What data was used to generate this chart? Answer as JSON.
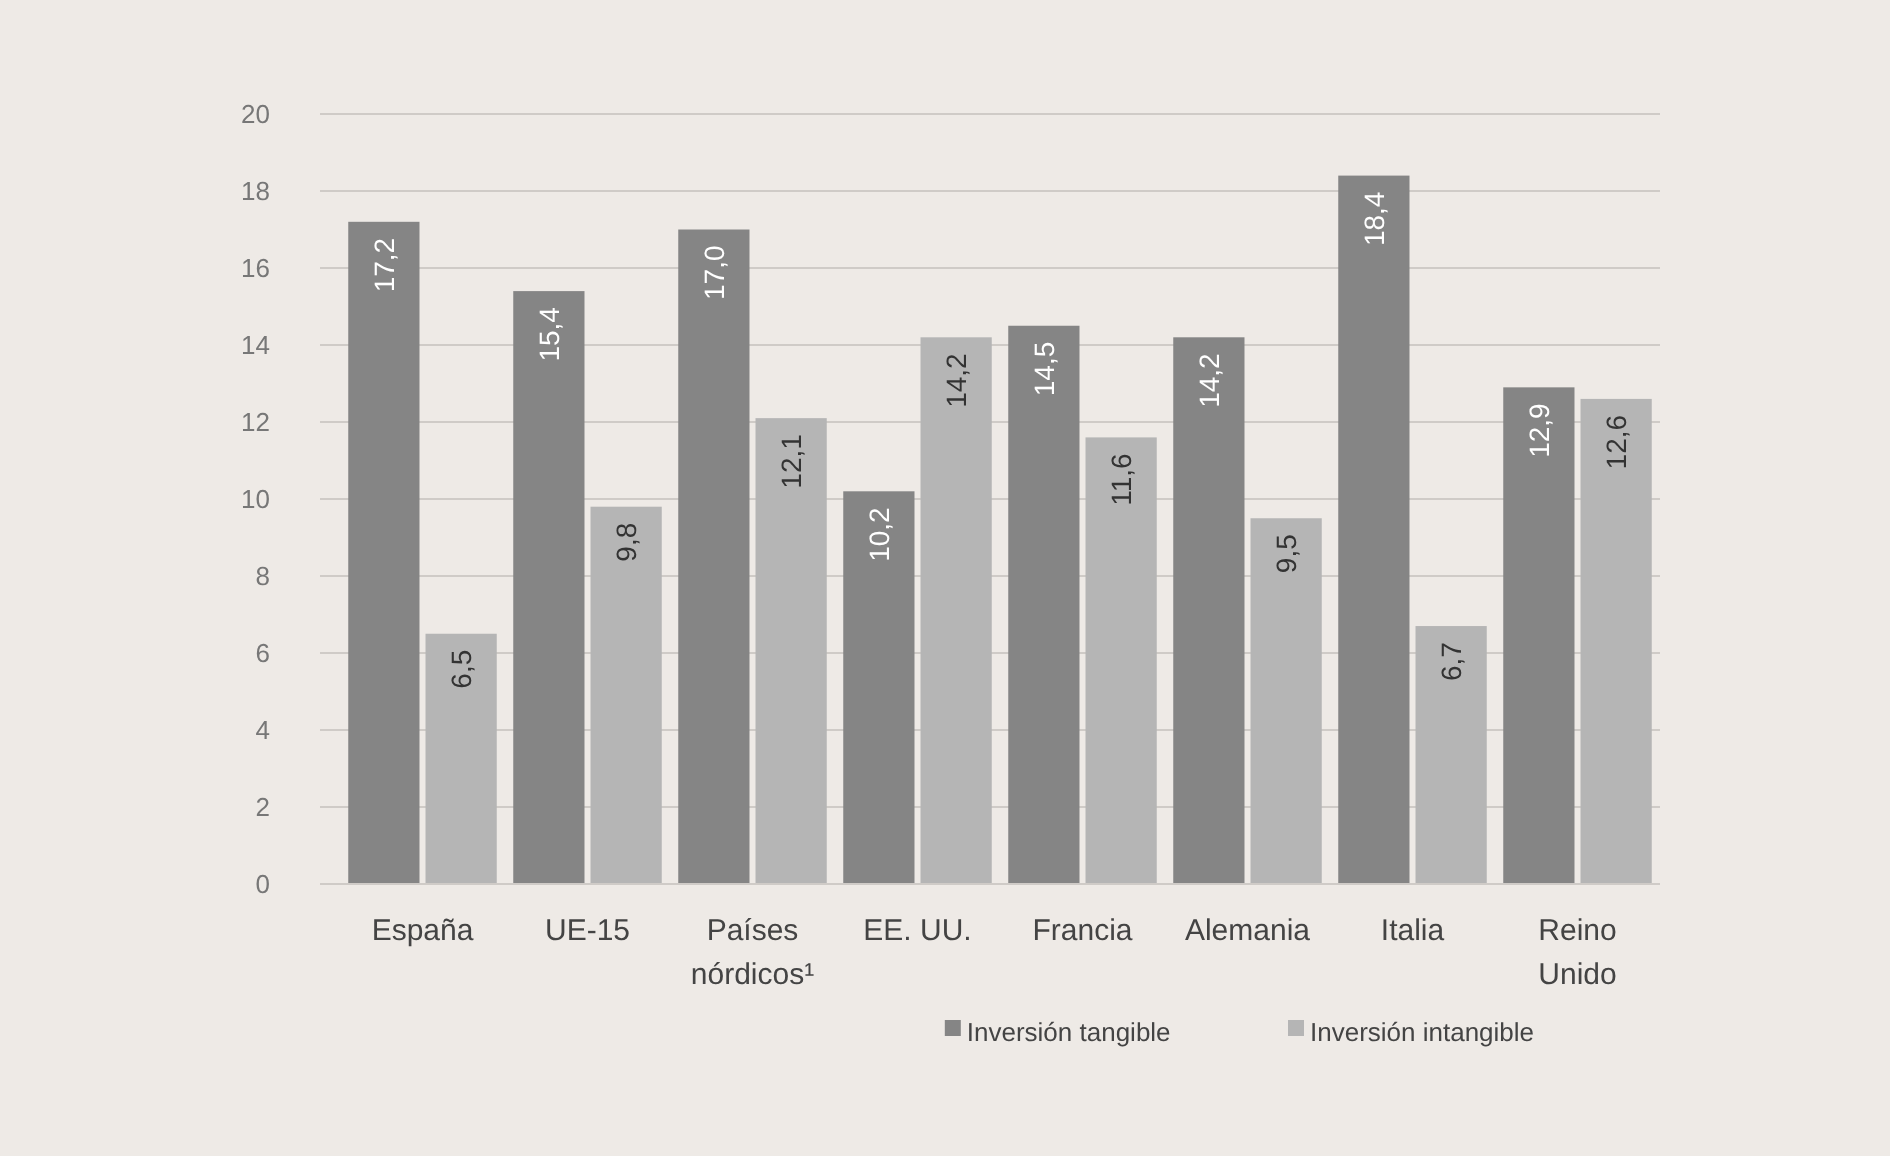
{
  "chart_data": {
    "type": "bar",
    "categories": [
      "España",
      "UE-15",
      "Países nórdicos¹",
      "EE. UU.",
      "Francia",
      "Alemania",
      "Italia",
      "Reino Unido"
    ],
    "series": [
      {
        "name": "Inversión tangible",
        "color": "#858585",
        "values": [
          17.2,
          15.4,
          17.0,
          10.2,
          14.5,
          14.2,
          18.4,
          12.9
        ],
        "value_labels": [
          "17,2",
          "15,4",
          "17,0",
          "10,2",
          "14,5",
          "14,2",
          "18,4",
          "12,9"
        ]
      },
      {
        "name": "Inversión intangible",
        "color": "#b5b5b5",
        "values": [
          6.5,
          9.8,
          12.1,
          14.2,
          11.6,
          9.5,
          6.7,
          12.6
        ],
        "value_labels": [
          "6,5",
          "9,8",
          "12,1",
          "14,2",
          "11,6",
          "9,5",
          "6,7",
          "12,6"
        ]
      }
    ],
    "ylim": [
      0,
      20
    ],
    "yticks": [
      0,
      2,
      4,
      6,
      8,
      10,
      12,
      14,
      16,
      18,
      20
    ],
    "grid": "y",
    "legend": "bottom right"
  }
}
